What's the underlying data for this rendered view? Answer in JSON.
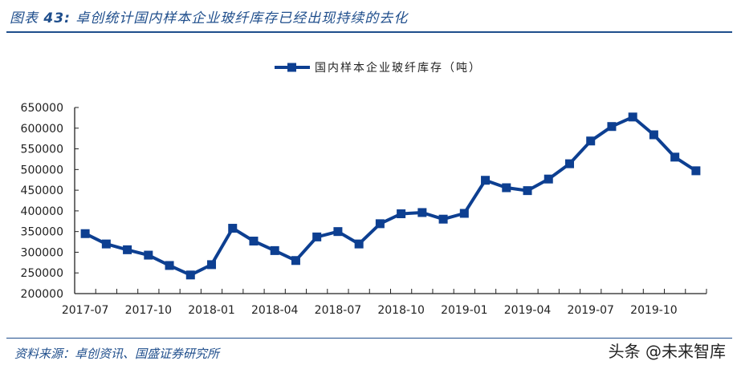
{
  "header": {
    "figure_label": "图表",
    "figure_number": "43:",
    "title": "卓创统计国内样本企业玻纤库存已经出现持续的去化"
  },
  "footer": {
    "source": "资料来源：卓创资讯、国盛证券研究所",
    "watermark": "头条 @未来智库"
  },
  "colors": {
    "series": "#0d3f91",
    "title_blue": "#1f4e8c",
    "axis": "#222222"
  },
  "chart_data": {
    "type": "line",
    "title": "",
    "legend": [
      "国内样本企业玻纤库存（吨）"
    ],
    "legend_position": "top-center",
    "xlabel": "",
    "ylabel": "",
    "grid": false,
    "ylim": [
      200000,
      650000
    ],
    "y_ticks": [
      200000,
      250000,
      300000,
      350000,
      400000,
      450000,
      500000,
      550000,
      600000,
      650000
    ],
    "x_tick_labels": [
      "2017-07",
      "2017-10",
      "2018-01",
      "2018-04",
      "2018-07",
      "2018-10",
      "2019-01",
      "2019-04",
      "2019-07",
      "2019-10"
    ],
    "categories": [
      "2017-07",
      "2017-08",
      "2017-09",
      "2017-10",
      "2017-11",
      "2017-12",
      "2018-01",
      "2018-02",
      "2018-03",
      "2018-04",
      "2018-05",
      "2018-06",
      "2018-07",
      "2018-08",
      "2018-09",
      "2018-10",
      "2018-11",
      "2018-12",
      "2019-01",
      "2019-02",
      "2019-03",
      "2019-04",
      "2019-05",
      "2019-06",
      "2019-07",
      "2019-08",
      "2019-09",
      "2019-10",
      "2019-11",
      "2019-12"
    ],
    "series": [
      {
        "name": "国内样本企业玻纤库存（吨）",
        "marker": "square",
        "values": [
          345000,
          320000,
          306000,
          293000,
          268000,
          245000,
          270000,
          358000,
          327000,
          304000,
          280000,
          337000,
          350000,
          320000,
          369000,
          393000,
          396000,
          380000,
          394000,
          474000,
          456000,
          449000,
          477000,
          514000,
          569000,
          604000,
          627000,
          584000,
          530000,
          497000
        ]
      }
    ]
  }
}
